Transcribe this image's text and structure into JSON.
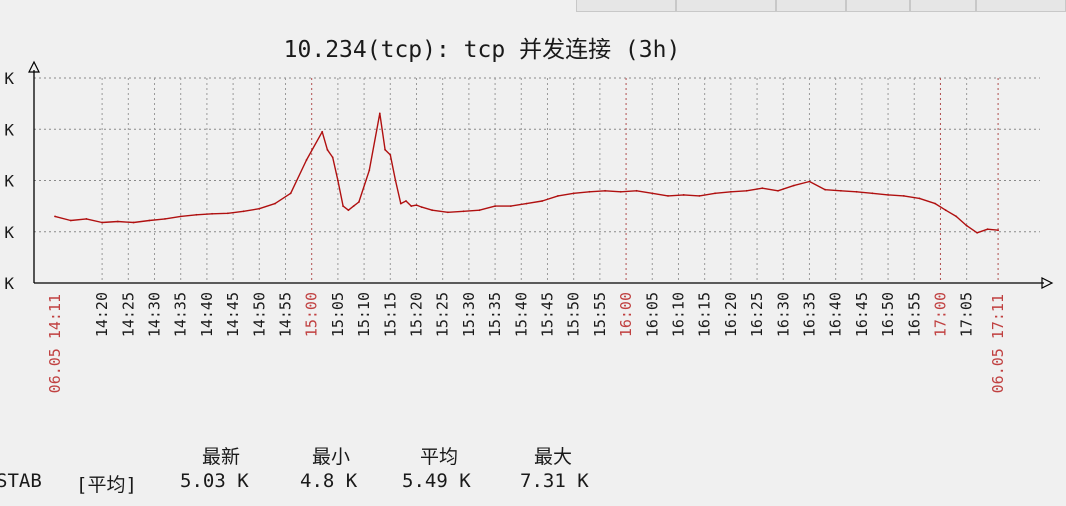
{
  "tabs": [
    "",
    "",
    "",
    "",
    "",
    ""
  ],
  "chart_data": {
    "type": "line",
    "title": "10.234(tcp): tcp 并发连接 (3h)",
    "y_tick_labels": [
      "K",
      "K",
      "K",
      "K",
      "K"
    ],
    "x_tick_labels": [
      "06.05 14:11",
      "14:20",
      "14:25",
      "14:30",
      "14:35",
      "14:40",
      "14:45",
      "14:50",
      "14:55",
      "15:00",
      "15:05",
      "15:10",
      "15:15",
      "15:20",
      "15:25",
      "15:30",
      "15:35",
      "15:40",
      "15:45",
      "15:50",
      "15:55",
      "16:00",
      "16:05",
      "16:10",
      "16:15",
      "16:20",
      "16:25",
      "16:30",
      "16:35",
      "16:40",
      "16:45",
      "16:50",
      "16:55",
      "17:00",
      "17:05",
      "06.05 17:11"
    ],
    "highlight_labels": [
      "06.05 14:11",
      "15:00",
      "16:00",
      "17:00",
      "06.05 17:11"
    ],
    "x_unit": "minutes",
    "grid": true,
    "line_color": "#b01010",
    "highlight_color": "#c04040",
    "series": [
      {
        "x": [
          0,
          3,
          6,
          9,
          12,
          15,
          18,
          21,
          24,
          27,
          30,
          33,
          36,
          39,
          42,
          45,
          48,
          51,
          52,
          53,
          54,
          55,
          56,
          57,
          58,
          60,
          62,
          63,
          64,
          65,
          66,
          67,
          68,
          69,
          70,
          72,
          75,
          78,
          81,
          84,
          87,
          90,
          93,
          96,
          99,
          102,
          105,
          108,
          111,
          114,
          117,
          120,
          123,
          126,
          129,
          132,
          135,
          138,
          141,
          144,
          147,
          150,
          153,
          156,
          159,
          162,
          165,
          168,
          170,
          172,
          174,
          176,
          178,
          180
        ],
        "values": [
          5.3,
          5.22,
          5.25,
          5.18,
          5.2,
          5.18,
          5.22,
          5.25,
          5.3,
          5.33,
          5.35,
          5.36,
          5.4,
          5.45,
          5.55,
          5.75,
          6.4,
          6.95,
          6.6,
          6.45,
          6.0,
          5.5,
          5.42,
          5.5,
          5.58,
          6.2,
          7.31,
          6.6,
          6.5,
          6.0,
          5.55,
          5.6,
          5.5,
          5.52,
          5.48,
          5.42,
          5.38,
          5.4,
          5.42,
          5.5,
          5.5,
          5.55,
          5.6,
          5.7,
          5.75,
          5.78,
          5.8,
          5.78,
          5.8,
          5.75,
          5.7,
          5.72,
          5.7,
          5.75,
          5.78,
          5.8,
          5.85,
          5.8,
          5.9,
          5.98,
          5.82,
          5.8,
          5.78,
          5.75,
          5.72,
          5.7,
          5.65,
          5.55,
          5.42,
          5.3,
          5.12,
          4.98,
          5.05,
          5.03
        ]
      }
    ],
    "ylim": [
      4.0,
      8.0
    ],
    "xlim": [
      -4,
      188
    ]
  },
  "legend": {
    "headers": [
      "最新",
      "最小",
      "平均",
      "最大"
    ],
    "row_label": "STAB",
    "row_tag": "[平均]",
    "values": [
      "5.03 K",
      "4.8 K",
      "5.49 K",
      "7.31 K"
    ]
  }
}
